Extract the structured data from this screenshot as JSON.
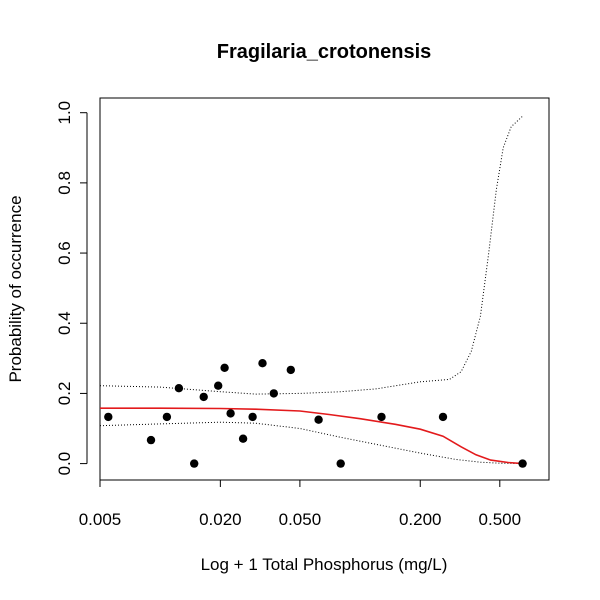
{
  "chart_data": {
    "type": "scatter",
    "title": "Fragilaria_crotonensis",
    "xlabel": "Log + 1 Total Phosphorus (mg/L)",
    "ylabel": "Probability of occurrence",
    "x_scale": "log",
    "xlim": [
      0.005,
      0.7
    ],
    "ylim": [
      0,
      1
    ],
    "x_ticks": [
      {
        "value": 0.005,
        "label": "0.005"
      },
      {
        "value": 0.02,
        "label": "0.020"
      },
      {
        "value": 0.05,
        "label": "0.050"
      },
      {
        "value": 0.2,
        "label": "0.200"
      },
      {
        "value": 0.5,
        "label": "0.500"
      }
    ],
    "y_ticks": [
      {
        "value": 0.0,
        "label": "0.0"
      },
      {
        "value": 0.2,
        "label": "0.2"
      },
      {
        "value": 0.4,
        "label": "0.4"
      },
      {
        "value": 0.6,
        "label": "0.6"
      },
      {
        "value": 0.8,
        "label": "0.8"
      },
      {
        "value": 1.0,
        "label": "1.0"
      }
    ],
    "grid": false,
    "colors": {
      "points": "#000000",
      "fit": "#e31a1c",
      "ci": "#000000"
    },
    "points": [
      {
        "x": 0.0055,
        "y": 0.133
      },
      {
        "x": 0.009,
        "y": 0.067
      },
      {
        "x": 0.0108,
        "y": 0.133
      },
      {
        "x": 0.0124,
        "y": 0.215
      },
      {
        "x": 0.0148,
        "y": 0.0
      },
      {
        "x": 0.0165,
        "y": 0.19
      },
      {
        "x": 0.0195,
        "y": 0.222
      },
      {
        "x": 0.021,
        "y": 0.273
      },
      {
        "x": 0.0225,
        "y": 0.143
      },
      {
        "x": 0.026,
        "y": 0.071
      },
      {
        "x": 0.029,
        "y": 0.133
      },
      {
        "x": 0.0325,
        "y": 0.286
      },
      {
        "x": 0.037,
        "y": 0.2
      },
      {
        "x": 0.045,
        "y": 0.267
      },
      {
        "x": 0.062,
        "y": 0.125
      },
      {
        "x": 0.08,
        "y": 0.0
      },
      {
        "x": 0.128,
        "y": 0.133
      },
      {
        "x": 0.26,
        "y": 0.133
      },
      {
        "x": 0.65,
        "y": 0.0
      }
    ],
    "fit_line": [
      {
        "x": 0.005,
        "y": 0.158
      },
      {
        "x": 0.01,
        "y": 0.158
      },
      {
        "x": 0.02,
        "y": 0.157
      },
      {
        "x": 0.03,
        "y": 0.155
      },
      {
        "x": 0.05,
        "y": 0.15
      },
      {
        "x": 0.07,
        "y": 0.14
      },
      {
        "x": 0.1,
        "y": 0.128
      },
      {
        "x": 0.15,
        "y": 0.112
      },
      {
        "x": 0.2,
        "y": 0.098
      },
      {
        "x": 0.26,
        "y": 0.078
      },
      {
        "x": 0.32,
        "y": 0.048
      },
      {
        "x": 0.38,
        "y": 0.025
      },
      {
        "x": 0.45,
        "y": 0.01
      },
      {
        "x": 0.55,
        "y": 0.003
      },
      {
        "x": 0.65,
        "y": 0.0
      }
    ],
    "ci_upper": [
      {
        "x": 0.005,
        "y": 0.222
      },
      {
        "x": 0.01,
        "y": 0.218
      },
      {
        "x": 0.02,
        "y": 0.205
      },
      {
        "x": 0.03,
        "y": 0.198
      },
      {
        "x": 0.05,
        "y": 0.2
      },
      {
        "x": 0.08,
        "y": 0.205
      },
      {
        "x": 0.12,
        "y": 0.213
      },
      {
        "x": 0.2,
        "y": 0.233
      },
      {
        "x": 0.28,
        "y": 0.24
      },
      {
        "x": 0.32,
        "y": 0.262
      },
      {
        "x": 0.36,
        "y": 0.32
      },
      {
        "x": 0.4,
        "y": 0.42
      },
      {
        "x": 0.44,
        "y": 0.6
      },
      {
        "x": 0.48,
        "y": 0.78
      },
      {
        "x": 0.52,
        "y": 0.9
      },
      {
        "x": 0.57,
        "y": 0.96
      },
      {
        "x": 0.65,
        "y": 0.99
      }
    ],
    "ci_lower": [
      {
        "x": 0.005,
        "y": 0.108
      },
      {
        "x": 0.01,
        "y": 0.113
      },
      {
        "x": 0.02,
        "y": 0.118
      },
      {
        "x": 0.03,
        "y": 0.115
      },
      {
        "x": 0.05,
        "y": 0.1
      },
      {
        "x": 0.08,
        "y": 0.075
      },
      {
        "x": 0.12,
        "y": 0.055
      },
      {
        "x": 0.2,
        "y": 0.03
      },
      {
        "x": 0.3,
        "y": 0.012
      },
      {
        "x": 0.4,
        "y": 0.004
      },
      {
        "x": 0.5,
        "y": 0.001
      },
      {
        "x": 0.65,
        "y": 0.0
      }
    ]
  }
}
